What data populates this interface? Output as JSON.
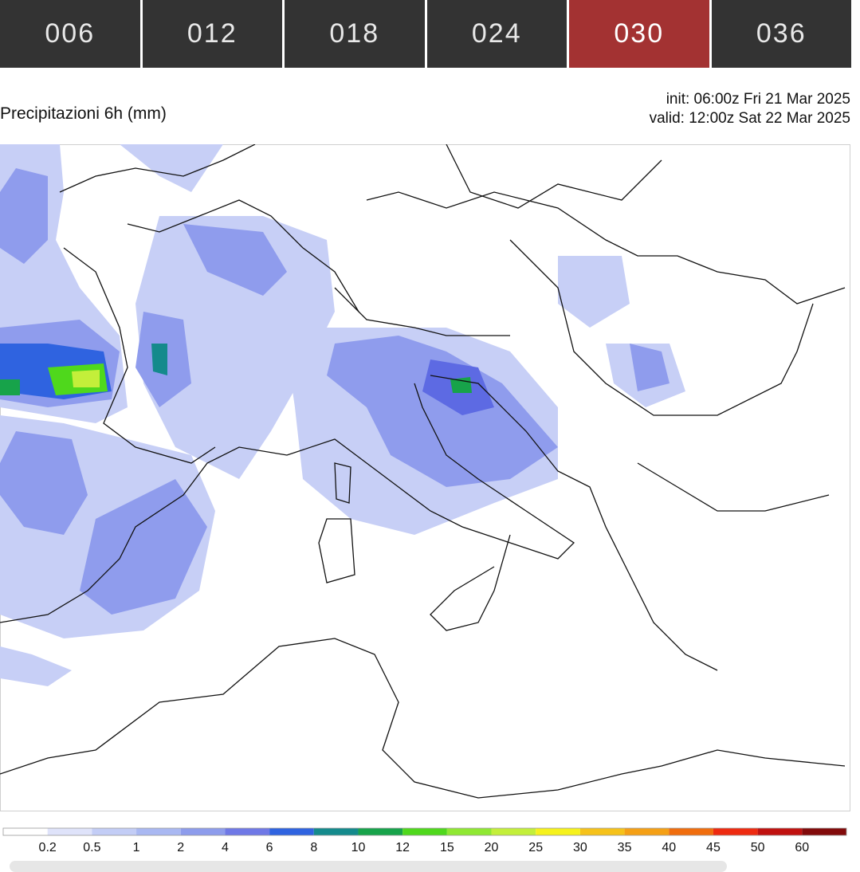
{
  "tabs": [
    "006",
    "012",
    "018",
    "024",
    "030",
    "036"
  ],
  "active_tab": 4,
  "title": "Precipitazioni 6h (mm)",
  "init": "init: 06:00z Fri 21 Mar 2025",
  "valid": "valid: 12:00z Sat 22 Mar 2025",
  "legend": {
    "ticks": [
      0.2,
      0.5,
      1,
      2,
      4,
      6,
      8,
      10,
      12,
      15,
      20,
      25,
      30,
      35,
      40,
      45,
      50,
      60
    ],
    "colors": [
      "#ffffff",
      "#dfe3fa",
      "#c3cdf6",
      "#a9b8f2",
      "#8d9cec",
      "#6f78e6",
      "#2f63e0",
      "#148a8c",
      "#17a34a",
      "#4fd81c",
      "#8fe832",
      "#c3ef3a",
      "#f6f21c",
      "#f6c21a",
      "#f5a015",
      "#f06d0d",
      "#ee2a10",
      "#c0110f",
      "#820a0a"
    ]
  }
}
